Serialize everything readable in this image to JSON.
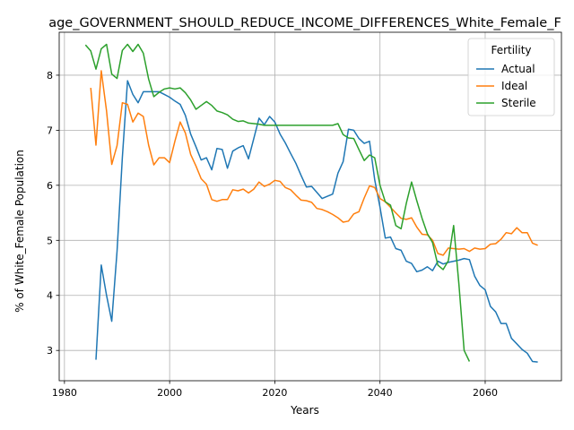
{
  "chart_data": {
    "type": "line",
    "title": "age_GOVERNMENT_SHOULD_REDUCE_INCOME_DIFFERENCES_White_Female_F",
    "xlabel": "Years",
    "ylabel": "% of White_Female Population",
    "xlim": [
      1979,
      2074.5
    ],
    "ylim": [
      2.45,
      8.78
    ],
    "xticks": [
      1980,
      2000,
      2020,
      2040,
      2060
    ],
    "yticks": [
      3,
      4,
      5,
      6,
      7,
      8
    ],
    "grid": true,
    "legend": {
      "title": "Fertility",
      "position": "top-right"
    },
    "series": [
      {
        "name": "Actual",
        "color": "#1f77b4",
        "x": [
          1986,
          1987,
          1988,
          1989,
          1990,
          1991,
          1992,
          1993,
          1994,
          1995,
          1996,
          1997,
          1998,
          1999,
          2000,
          2001,
          2002,
          2003,
          2004,
          2005,
          2006,
          2007,
          2008,
          2009,
          2010,
          2011,
          2012,
          2013,
          2014,
          2015,
          2016,
          2017,
          2018,
          2019,
          2020,
          2021,
          2022,
          2023,
          2024,
          2025,
          2026,
          2027,
          2028,
          2029,
          2030,
          2031,
          2032,
          2033,
          2034,
          2035,
          2036,
          2037,
          2038,
          2039,
          2040,
          2041,
          2042,
          2043,
          2044,
          2045,
          2046,
          2047,
          2048,
          2049,
          2050,
          2051,
          2052,
          2053,
          2054,
          2055,
          2056,
          2057,
          2058,
          2059,
          2060,
          2061,
          2062,
          2063,
          2064,
          2065,
          2066,
          2067,
          2068,
          2069,
          2070
        ],
        "y": [
          2.83,
          4.55,
          4.0,
          3.53,
          4.8,
          6.5,
          7.9,
          7.65,
          7.5,
          7.7,
          7.7,
          7.7,
          7.7,
          7.65,
          7.6,
          7.53,
          7.47,
          7.27,
          6.93,
          6.7,
          6.46,
          6.5,
          6.28,
          6.67,
          6.65,
          6.31,
          6.62,
          6.68,
          6.72,
          6.48,
          6.85,
          7.22,
          7.1,
          7.25,
          7.15,
          6.93,
          6.77,
          6.58,
          6.4,
          6.18,
          5.97,
          5.98,
          5.87,
          5.76,
          5.8,
          5.84,
          6.22,
          6.43,
          7.02,
          7.0,
          6.85,
          6.76,
          6.8,
          6.1,
          5.6,
          5.04,
          5.06,
          4.85,
          4.82,
          4.62,
          4.58,
          4.43,
          4.46,
          4.52,
          4.45,
          4.62,
          4.57,
          4.6,
          4.62,
          4.64,
          4.67,
          4.65,
          4.35,
          4.18,
          4.1,
          3.8,
          3.7,
          3.49,
          3.49,
          3.22,
          3.12,
          3.02,
          2.95,
          2.8,
          2.79
        ]
      },
      {
        "name": "Ideal",
        "color": "#ff7f0e",
        "x": [
          1985,
          1986,
          1987,
          1988,
          1989,
          1990,
          1991,
          1992,
          1993,
          1994,
          1995,
          1996,
          1997,
          1998,
          1999,
          2000,
          2001,
          2002,
          2003,
          2004,
          2005,
          2006,
          2007,
          2008,
          2009,
          2010,
          2011,
          2012,
          2013,
          2014,
          2015,
          2016,
          2017,
          2018,
          2019,
          2020,
          2021,
          2022,
          2023,
          2024,
          2025,
          2026,
          2027,
          2028,
          2029,
          2030,
          2031,
          2032,
          2033,
          2034,
          2035,
          2036,
          2037,
          2038,
          2039,
          2040,
          2041,
          2042,
          2043,
          2044,
          2045,
          2046,
          2047,
          2048,
          2049,
          2050,
          2051,
          2052,
          2053,
          2054,
          2055,
          2056,
          2057,
          2058,
          2059,
          2060,
          2061,
          2062,
          2063,
          2064,
          2065,
          2066,
          2067,
          2068,
          2069,
          2070
        ],
        "y": [
          7.77,
          6.73,
          8.08,
          7.35,
          6.38,
          6.72,
          7.5,
          7.47,
          7.15,
          7.31,
          7.25,
          6.73,
          6.37,
          6.5,
          6.5,
          6.41,
          6.8,
          7.15,
          6.95,
          6.56,
          6.35,
          6.12,
          6.02,
          5.74,
          5.71,
          5.74,
          5.74,
          5.92,
          5.9,
          5.93,
          5.86,
          5.93,
          6.06,
          5.98,
          6.02,
          6.09,
          6.07,
          5.96,
          5.92,
          5.82,
          5.73,
          5.72,
          5.69,
          5.58,
          5.56,
          5.52,
          5.47,
          5.41,
          5.33,
          5.35,
          5.48,
          5.52,
          5.77,
          5.99,
          5.96,
          5.76,
          5.7,
          5.6,
          5.5,
          5.4,
          5.38,
          5.41,
          5.24,
          5.11,
          5.1,
          5.0,
          4.76,
          4.73,
          4.86,
          4.85,
          4.84,
          4.85,
          4.8,
          4.86,
          4.84,
          4.85,
          4.93,
          4.94,
          5.02,
          5.14,
          5.12,
          5.23,
          5.14,
          5.14,
          4.95,
          4.91
        ]
      },
      {
        "name": "Sterile",
        "color": "#2ca02c",
        "x": [
          1984,
          1985,
          1986,
          1987,
          1988,
          1989,
          1990,
          1991,
          1992,
          1993,
          1994,
          1995,
          1996,
          1997,
          1998,
          1999,
          2000,
          2001,
          2002,
          2003,
          2004,
          2005,
          2006,
          2007,
          2008,
          2009,
          2010,
          2011,
          2012,
          2013,
          2014,
          2015,
          2016,
          2017,
          2018,
          2019,
          2020,
          2021,
          2022,
          2023,
          2024,
          2025,
          2026,
          2027,
          2028,
          2029,
          2030,
          2031,
          2032,
          2033,
          2034,
          2035,
          2036,
          2037,
          2038,
          2039,
          2040,
          2041,
          2042,
          2043,
          2044,
          2045,
          2046,
          2047,
          2048,
          2049,
          2050,
          2051,
          2052,
          2053,
          2054,
          2055,
          2056,
          2057
        ],
        "y": [
          8.55,
          8.44,
          8.11,
          8.48,
          8.56,
          8.02,
          7.94,
          8.45,
          8.56,
          8.43,
          8.56,
          8.4,
          7.93,
          7.61,
          7.69,
          7.75,
          7.77,
          7.75,
          7.77,
          7.68,
          7.55,
          7.38,
          7.45,
          7.52,
          7.45,
          7.35,
          7.32,
          7.28,
          7.2,
          7.16,
          7.17,
          7.13,
          7.12,
          7.11,
          7.09,
          7.09,
          7.09,
          7.09,
          7.09,
          7.09,
          7.09,
          7.09,
          7.09,
          7.09,
          7.09,
          7.09,
          7.09,
          7.09,
          7.12,
          6.92,
          6.86,
          6.85,
          6.65,
          6.45,
          6.55,
          6.5,
          6.0,
          5.7,
          5.64,
          5.27,
          5.21,
          5.67,
          6.06,
          5.72,
          5.4,
          5.12,
          4.96,
          4.55,
          4.47,
          4.63,
          5.27,
          4.2,
          3.0,
          2.8
        ]
      }
    ]
  }
}
